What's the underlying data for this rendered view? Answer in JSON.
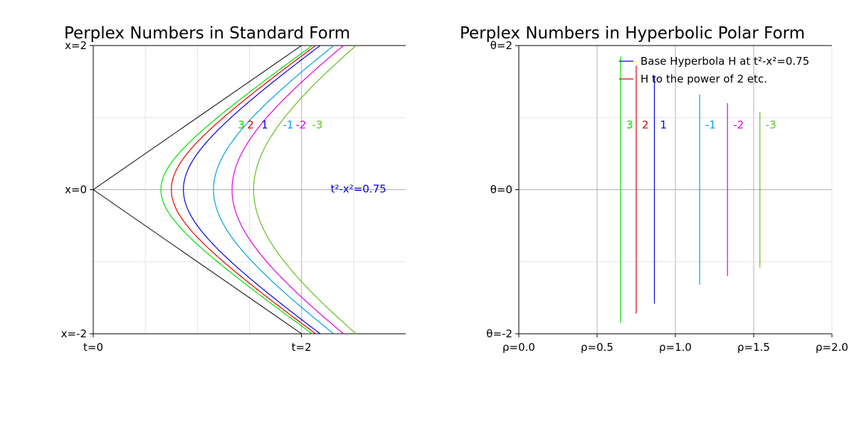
{
  "chart_data": [
    {
      "type": "line",
      "title": "Perplex Numbers in Standard Form",
      "xlabel": "",
      "ylabel": "",
      "xlim": [
        0,
        3
      ],
      "ylim": [
        -2,
        2
      ],
      "grid": true,
      "x_ticks": [
        {
          "value": 0,
          "label": "t=0"
        },
        {
          "value": 2,
          "label": "t=2"
        }
      ],
      "y_ticks": [
        {
          "value": 2,
          "label": "x=2"
        },
        {
          "value": 0,
          "label": "x=0"
        },
        {
          "value": -2,
          "label": "x=-2"
        }
      ],
      "light_cone_color": "#000000",
      "series": [
        {
          "name": "3",
          "a": 0.65,
          "color": "#00e000"
        },
        {
          "name": "2",
          "a": 0.75,
          "color": "#e00000"
        },
        {
          "name": "1",
          "a": 0.866,
          "color": "#0000e0"
        },
        {
          "name": "-1",
          "a": 1.155,
          "color": "#00a0e0"
        },
        {
          "name": "-2",
          "a": 1.333,
          "color": "#e000e0"
        },
        {
          "name": "-3",
          "a": 1.54,
          "color": "#60c020"
        }
      ],
      "labels_y": 0.92,
      "annotation": {
        "text": "t²-x²=0.75",
        "x": 2.28,
        "y": 0,
        "color": "#0000e0"
      }
    },
    {
      "type": "line",
      "title": "Perplex Numbers in Hyperbolic Polar Form",
      "xlabel": "",
      "ylabel": "",
      "xlim": [
        0,
        2
      ],
      "ylim": [
        -2,
        2
      ],
      "grid": true,
      "x_ticks": [
        {
          "value": 0,
          "label": "ρ=0.0"
        },
        {
          "value": 0.5,
          "label": "ρ=0.5"
        },
        {
          "value": 1,
          "label": "ρ=1.0"
        },
        {
          "value": 1.5,
          "label": "ρ=1.5"
        },
        {
          "value": 2,
          "label": "ρ=2.0"
        }
      ],
      "y_ticks": [
        {
          "value": 2,
          "label": "θ=2"
        },
        {
          "value": 0,
          "label": "θ=0"
        },
        {
          "value": -2,
          "label": "θ=-2"
        }
      ],
      "series": [
        {
          "name": "3",
          "rho": 0.65,
          "theta_range": [
            -1.85,
            1.85
          ],
          "color": "#00e000"
        },
        {
          "name": "2",
          "rho": 0.75,
          "theta_range": [
            -1.72,
            1.72
          ],
          "color": "#e00000"
        },
        {
          "name": "1",
          "rho": 0.866,
          "theta_range": [
            -1.58,
            1.58
          ],
          "color": "#0000e0"
        },
        {
          "name": "-1",
          "rho": 1.155,
          "theta_range": [
            -1.32,
            1.32
          ],
          "color": "#00a0e0"
        },
        {
          "name": "-2",
          "rho": 1.333,
          "theta_range": [
            -1.2,
            1.2
          ],
          "color": "#e000e0"
        },
        {
          "name": "-3",
          "rho": 1.54,
          "theta_range": [
            -1.08,
            1.08
          ],
          "color": "#60c020"
        }
      ],
      "labels_y": 0.92,
      "legend": {
        "placement": "top-right",
        "entries": [
          {
            "label": "Base Hyperbola H at t²-x²=0.75",
            "color": "#0000e0"
          },
          {
            "label": "H to the power of 2 etc.",
            "color": "#e00000"
          }
        ]
      }
    }
  ]
}
